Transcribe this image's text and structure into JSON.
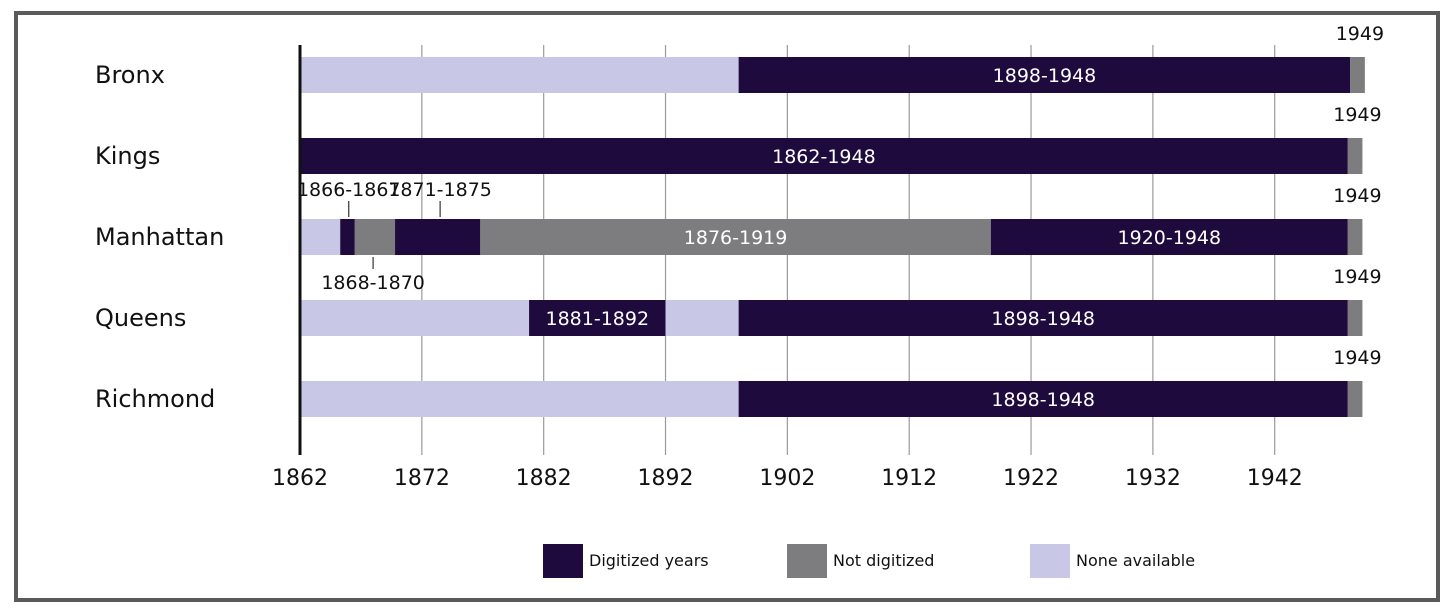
{
  "chart_data": {
    "type": "bar",
    "orientation": "horizontal-timeline",
    "title": "",
    "xlabel": "",
    "ylabel": "",
    "xlim": [
      1862,
      1949
    ],
    "x_ticks": [
      "1862",
      "1872",
      "1882",
      "1892",
      "1902",
      "1912",
      "1922",
      "1932",
      "1942"
    ],
    "grid": true,
    "legend_position": "bottom",
    "legend": [
      {
        "key": "digitized",
        "label": "Digitized years",
        "color": "#1f0a3d"
      },
      {
        "key": "not",
        "label": "Not digitized",
        "color": "#7d7d80"
      },
      {
        "key": "none",
        "label": "None available",
        "color": "#c8c8e6"
      }
    ],
    "categories": [
      "Bronx",
      "Kings",
      "Manhattan",
      "Queens",
      "Richmond"
    ],
    "rows": [
      {
        "name": "Bronx",
        "segments": [
          {
            "start": 1862,
            "end": 1898,
            "status": "none",
            "label": ""
          },
          {
            "start": 1898,
            "end": 1948.2,
            "status": "digitized",
            "label": "1898-1948"
          },
          {
            "start": 1948.2,
            "end": 1949.4,
            "status": "not",
            "label": ""
          }
        ],
        "end_label": "1949"
      },
      {
        "name": "Kings",
        "segments": [
          {
            "start": 1862,
            "end": 1948,
            "status": "digitized",
            "label": "1862-1948"
          },
          {
            "start": 1948,
            "end": 1949.2,
            "status": "not",
            "label": ""
          }
        ],
        "end_label": "1949"
      },
      {
        "name": "Manhattan",
        "segments": [
          {
            "start": 1862,
            "end": 1865.3,
            "status": "none",
            "label": ""
          },
          {
            "start": 1865.3,
            "end": 1866.5,
            "status": "digitized",
            "label": ""
          },
          {
            "start": 1866.5,
            "end": 1869.8,
            "status": "not",
            "label": ""
          },
          {
            "start": 1869.8,
            "end": 1876.8,
            "status": "digitized",
            "label": ""
          },
          {
            "start": 1876.8,
            "end": 1918.7,
            "status": "not",
            "label": "1876-1919"
          },
          {
            "start": 1918.7,
            "end": 1948,
            "status": "digitized",
            "label": "1920-1948"
          },
          {
            "start": 1948,
            "end": 1949.2,
            "status": "not",
            "label": ""
          }
        ],
        "callouts": [
          {
            "label": "1866-1867",
            "x": 1866,
            "side": "above"
          },
          {
            "label": "1871-1875",
            "x": 1873.5,
            "side": "above"
          },
          {
            "label": "1868-1870",
            "x": 1868,
            "side": "below"
          }
        ],
        "end_label": "1949"
      },
      {
        "name": "Queens",
        "segments": [
          {
            "start": 1862,
            "end": 1880.8,
            "status": "none",
            "label": ""
          },
          {
            "start": 1880.8,
            "end": 1892,
            "status": "digitized",
            "label": "1881-1892"
          },
          {
            "start": 1892,
            "end": 1898,
            "status": "none",
            "label": ""
          },
          {
            "start": 1898,
            "end": 1948,
            "status": "digitized",
            "label": "1898-1948"
          },
          {
            "start": 1948,
            "end": 1949.2,
            "status": "not",
            "label": ""
          }
        ],
        "end_label": "1949"
      },
      {
        "name": "Richmond",
        "segments": [
          {
            "start": 1862,
            "end": 1898,
            "status": "none",
            "label": ""
          },
          {
            "start": 1898,
            "end": 1948,
            "status": "digitized",
            "label": "1898-1948"
          },
          {
            "start": 1948,
            "end": 1949.2,
            "status": "not",
            "label": ""
          }
        ],
        "end_label": "1949"
      }
    ]
  }
}
